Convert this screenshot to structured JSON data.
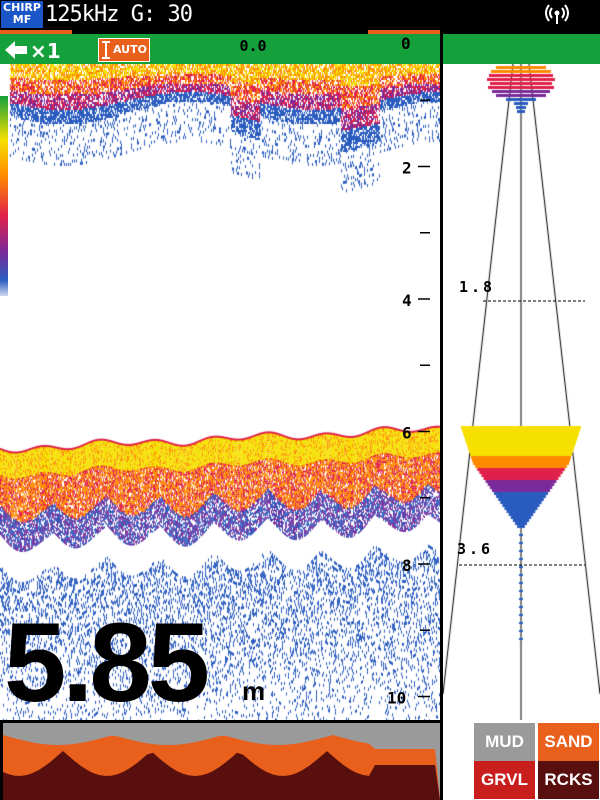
{
  "header": {
    "mode_badge_line1": "CHIRP",
    "mode_badge_line2": "MF",
    "frequency_gain": "125kHz G: 30",
    "signal_icon": "antenna-signal-icon"
  },
  "toolbar": {
    "back_icon": "back-arrow-icon",
    "zoom_multiplier": "×1",
    "range_button_label": "AUTO",
    "range_icon": "vertical-range-icon",
    "offset_value": "0.0"
  },
  "depth_scale": {
    "ticks": [
      "0",
      "2",
      "4",
      "6",
      "8",
      "10"
    ],
    "unit": "m"
  },
  "zoom_panel": {
    "markers": [
      "1.8",
      "3.6"
    ]
  },
  "readout": {
    "depth_value": "5.85",
    "depth_unit": "m"
  },
  "bottom_discrimination": {
    "legend": [
      {
        "label": "MUD",
        "color": "#9a9a9a"
      },
      {
        "label": "SAND",
        "color": "#e8601c"
      },
      {
        "label": "GRVL",
        "color": "#c81e1e"
      },
      {
        "label": "RCKS",
        "color": "#5a0f0f"
      }
    ]
  },
  "colors": {
    "echo_strong": "#f5e000",
    "echo_high": "#ff8a00",
    "echo_mid": "#e0204a",
    "echo_low": "#7a2a9a",
    "echo_weak": "#2a5cc0",
    "accent_green": "#14a03a",
    "accent_orange": "#e8601c"
  }
}
